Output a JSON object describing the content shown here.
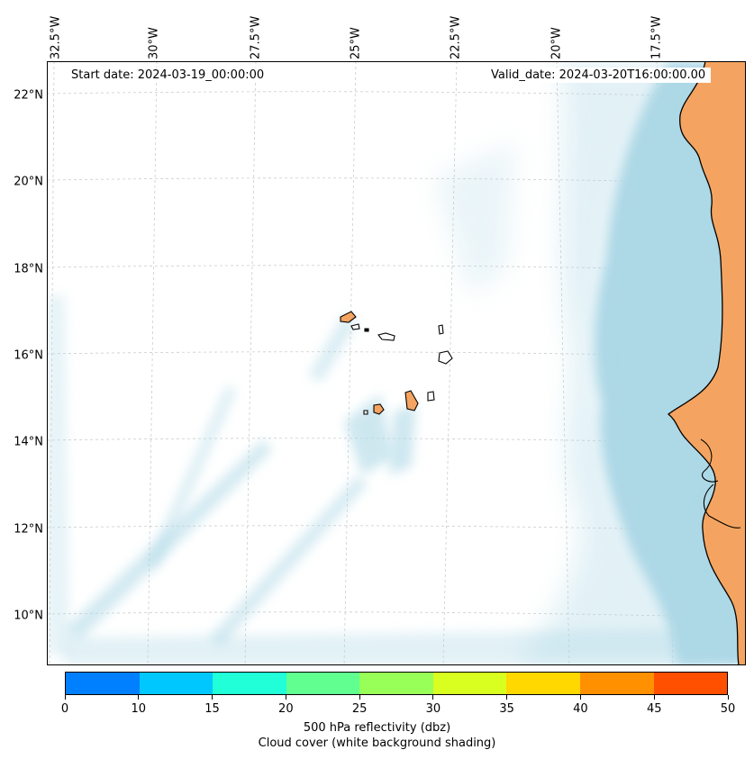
{
  "map": {
    "start_date": "Start date: 2024-03-19_00:00:00",
    "valid_date": "Valid_date: 2024-03-20T16:00:00.00",
    "longitude_labels": [
      "32.5°W",
      "30°W",
      "27.5°W",
      "25°W",
      "22.5°W",
      "20°W",
      "17.5°W"
    ],
    "latitude_labels": [
      "22°N",
      "20°N",
      "18°N",
      "16°N",
      "14°N",
      "12°N",
      "10°N"
    ],
    "colors": {
      "land": "#f4a460",
      "coastline": "#000000",
      "cloud_cover": "#add8e6",
      "gridline": "#cccccc"
    }
  },
  "colorbar": {
    "label_line1": "500 hPa reflectivity (dbz)",
    "label_line2": "Cloud cover (white background shading)",
    "ticks": [
      "0",
      "10",
      "15",
      "20",
      "25",
      "30",
      "35",
      "40",
      "45",
      "50"
    ],
    "colors": [
      "#0080ff",
      "#00c8ff",
      "#20ffd8",
      "#60ff90",
      "#98ff58",
      "#d8ff20",
      "#ffd800",
      "#ff9000",
      "#ff5000"
    ]
  }
}
